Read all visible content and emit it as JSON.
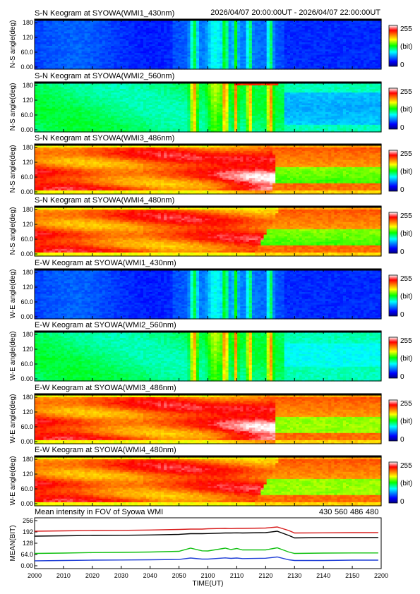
{
  "header": {
    "time_range": "2026/04/07 20:00:00UT - 2026/04/07 22:00:00UT"
  },
  "chart_data": {
    "type": "heatmap",
    "panels": [
      {
        "title": "S-N Keogram at SYOWA(WMI1_430nm)",
        "ylabel": "N-S angle(deg)",
        "yticks": [
          "0.00",
          "60.0",
          "120",
          "180"
        ],
        "colorbar": [
          "255",
          "(bit)",
          "0"
        ],
        "wavelength": 430
      },
      {
        "title": "S-N Keogram at SYOWA(WMI2_560nm)",
        "ylabel": "N-S angle(deg)",
        "yticks": [
          "0.00",
          "60.0",
          "120",
          "180"
        ],
        "colorbar": [
          "255",
          "(bit)",
          "0"
        ],
        "wavelength": 560
      },
      {
        "title": "S-N Keogram at SYOWA(WMI3_486nm)",
        "ylabel": "N-S angle(deg)",
        "yticks": [
          "0.00",
          "60.0",
          "120",
          "180"
        ],
        "colorbar": [
          "255",
          "(bit)",
          "0"
        ],
        "wavelength": 486
      },
      {
        "title": "S-N Keogram at SYOWA(WMI4_480nm)",
        "ylabel": "N-S angle(deg)",
        "yticks": [
          "0.00",
          "60.0",
          "120",
          "180"
        ],
        "colorbar": [
          "255",
          "(bit)",
          "0"
        ],
        "wavelength": 480
      },
      {
        "title": "E-W Keogram at SYOWA(WMI1_430nm)",
        "ylabel": "W-E angle(deg)",
        "yticks": [
          "0.00",
          "60.0",
          "120",
          "180"
        ],
        "colorbar": [
          "255",
          "(bit)",
          "0"
        ],
        "wavelength": 430
      },
      {
        "title": "E-W Keogram at SYOWA(WMI2_560nm)",
        "ylabel": "W-E angle(deg)",
        "yticks": [
          "0.00",
          "60.0",
          "120",
          "180"
        ],
        "colorbar": [
          "255",
          "(bit)",
          "0"
        ],
        "wavelength": 560
      },
      {
        "title": "E-W Keogram at SYOWA(WMI3_486nm)",
        "ylabel": "W-E angle(deg)",
        "yticks": [
          "0.00",
          "60.0",
          "120",
          "180"
        ],
        "colorbar": [
          "255",
          "(bit)",
          "0"
        ],
        "wavelength": 486
      },
      {
        "title": "E-W Keogram at SYOWA(WMI4_480nm)",
        "ylabel": "W-E angle(deg)",
        "yticks": [
          "0.00",
          "60.0",
          "120",
          "180"
        ],
        "colorbar": [
          "255",
          "(bit)",
          "0"
        ],
        "wavelength": 480
      }
    ],
    "mean": {
      "type": "line",
      "title": "Mean intensity in FOV of Syowa WMI",
      "ylabel": "MEAN(BIT)",
      "yticks": [
        "0.00",
        "64.0",
        "128",
        "192",
        "256"
      ],
      "ylim": [
        0,
        256
      ],
      "x": [
        2000,
        2010,
        2020,
        2030,
        2040,
        2050,
        2054,
        2058,
        2100,
        2106,
        2108,
        2110,
        2112,
        2120,
        2124,
        2128,
        2130,
        2140,
        2150,
        2159
      ],
      "series": [
        {
          "name": "430",
          "color": "#1f3fd6",
          "values": [
            28,
            30,
            32,
            33,
            34,
            36,
            44,
            38,
            38,
            45,
            42,
            44,
            41,
            43,
            50,
            34,
            30,
            30,
            32,
            32
          ]
        },
        {
          "name": "560",
          "color": "#11c011",
          "values": [
            70,
            72,
            75,
            76,
            78,
            82,
            100,
            85,
            84,
            100,
            92,
            98,
            90,
            90,
            102,
            78,
            70,
            72,
            73,
            73
          ]
        },
        {
          "name": "486",
          "color": "#d81e1e",
          "values": [
            196,
            198,
            200,
            201,
            203,
            206,
            208,
            208,
            210,
            212,
            211,
            212,
            212,
            214,
            220,
            200,
            186,
            187,
            188,
            188
          ]
        },
        {
          "name": "480",
          "color": "#000000",
          "values": [
            168,
            170,
            172,
            173,
            175,
            178,
            182,
            182,
            183,
            186,
            186,
            187,
            186,
            188,
            196,
            172,
            158,
            160,
            160,
            160
          ]
        }
      ]
    },
    "xaxis": {
      "label": "TIME(UT)",
      "ticks": [
        "2000",
        "2010",
        "2020",
        "2030",
        "2040",
        "2050",
        "2100",
        "2110",
        "2120",
        "2130",
        "2140",
        "2150",
        "2200"
      ]
    }
  }
}
